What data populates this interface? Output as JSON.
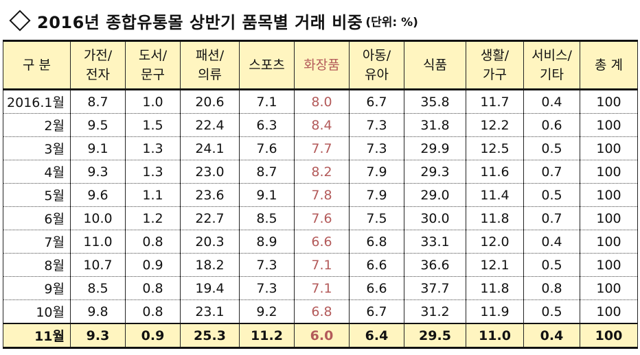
{
  "title": {
    "main": "2016년 종합유통몰 상반기 품목별 거래 비중",
    "unit": "(단위: %)"
  },
  "columns": [
    {
      "line1": "구 분",
      "line2": ""
    },
    {
      "line1": "가전/",
      "line2": "전자"
    },
    {
      "line1": "도서/",
      "line2": "문구"
    },
    {
      "line1": "패션/",
      "line2": "의류"
    },
    {
      "line1": "스포츠",
      "line2": ""
    },
    {
      "line1": "화장품",
      "line2": ""
    },
    {
      "line1": "아동/",
      "line2": "유아"
    },
    {
      "line1": "식품",
      "line2": ""
    },
    {
      "line1": "생활/",
      "line2": "가구"
    },
    {
      "line1": "서비스/",
      "line2": "기타"
    },
    {
      "line1": "총 계",
      "line2": ""
    }
  ],
  "highlight_color": "#b35a5a",
  "header_bg": "#fff5c0",
  "rows": [
    [
      "2016.1월",
      "8.7",
      "1.0",
      "20.6",
      "7.1",
      "8.0",
      "6.7",
      "35.8",
      "11.7",
      "0.4",
      "100"
    ],
    [
      "2월",
      "9.5",
      "1.5",
      "22.4",
      "6.3",
      "8.4",
      "7.3",
      "31.8",
      "12.2",
      "0.6",
      "100"
    ],
    [
      "3월",
      "9.1",
      "1.3",
      "24.1",
      "7.6",
      "7.7",
      "7.3",
      "29.9",
      "12.5",
      "0.5",
      "100"
    ],
    [
      "4월",
      "9.3",
      "1.3",
      "23.0",
      "8.7",
      "8.2",
      "7.9",
      "29.3",
      "11.6",
      "0.7",
      "100"
    ],
    [
      "5월",
      "9.6",
      "1.1",
      "23.6",
      "9.1",
      "7.8",
      "7.9",
      "29.0",
      "11.4",
      "0.5",
      "100"
    ],
    [
      "6월",
      "10.0",
      "1.2",
      "22.7",
      "8.5",
      "7.6",
      "7.5",
      "30.0",
      "11.8",
      "0.7",
      "100"
    ],
    [
      "7월",
      "11.0",
      "0.8",
      "20.3",
      "8.9",
      "6.6",
      "6.8",
      "33.1",
      "12.0",
      "0.4",
      "100"
    ],
    [
      "8월",
      "10.7",
      "0.9",
      "18.2",
      "7.3",
      "7.1",
      "6.6",
      "36.6",
      "12.1",
      "0.5",
      "100"
    ],
    [
      "9월",
      "8.5",
      "0.8",
      "19.4",
      "7.3",
      "7.1",
      "6.6",
      "37.7",
      "11.8",
      "0.8",
      "100"
    ],
    [
      "10월",
      "9.8",
      "0.8",
      "23.1",
      "9.2",
      "6.8",
      "6.7",
      "31.2",
      "11.9",
      "0.5",
      "100"
    ],
    [
      "11월",
      "9.3",
      "0.9",
      "25.3",
      "11.2",
      "6.0",
      "6.4",
      "29.5",
      "11.0",
      "0.4",
      "100"
    ]
  ]
}
